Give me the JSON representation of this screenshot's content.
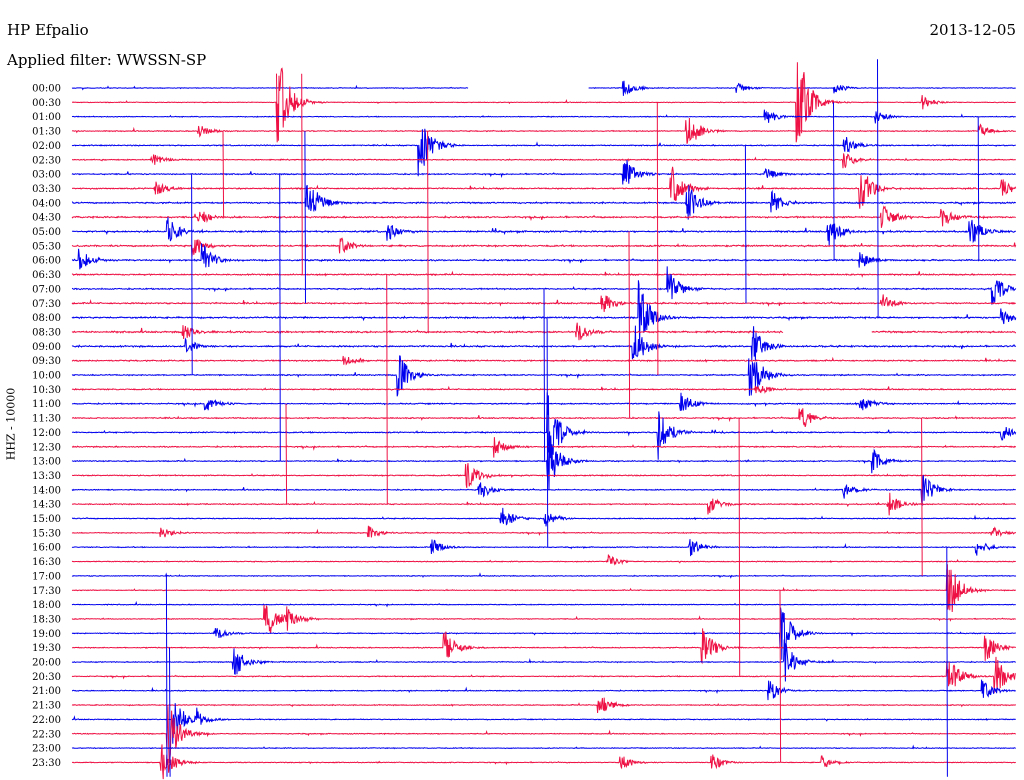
{
  "header": {
    "station": "HP Efpalio",
    "date": "2013-12-05",
    "filter": "Applied filter: WWSSN-SP"
  },
  "chart_data": {
    "type": "helicorder",
    "title": "HP Efpalio",
    "date": "2013-12-05",
    "filter": "Applied filter: WWSSN-SP",
    "ylabel": "HHZ - 10000",
    "row_minutes": 30,
    "colors": {
      "trace_a": "#0000ee",
      "trace_b": "#ee1144"
    },
    "row_labels": [
      "00:00",
      "00:30",
      "01:00",
      "01:30",
      "02:00",
      "02:30",
      "03:00",
      "03:30",
      "04:00",
      "04:30",
      "05:00",
      "05:30",
      "06:00",
      "06:30",
      "07:00",
      "07:30",
      "08:00",
      "08:30",
      "09:00",
      "09:30",
      "10:00",
      "10:30",
      "11:00",
      "11:30",
      "12:00",
      "12:30",
      "13:00",
      "13:30",
      "14:00",
      "14:30",
      "15:00",
      "15:30",
      "16:00",
      "16:30",
      "17:00",
      "17:30",
      "18:00",
      "18:30",
      "19:00",
      "19:30",
      "20:00",
      "20:30",
      "21:00",
      "21:30",
      "22:00",
      "22:30",
      "23:00",
      "23:30"
    ],
    "row_noise": [
      0.6,
      0.6,
      0.7,
      0.8,
      0.9,
      0.9,
      1.0,
      1.1,
      1.2,
      1.3,
      1.3,
      1.3,
      1.2,
      1.1,
      1.1,
      1.2,
      1.3,
      1.4,
      1.3,
      1.1,
      1.0,
      1.0,
      1.0,
      1.0,
      1.0,
      1.0,
      0.9,
      0.9,
      0.9,
      0.9,
      0.8,
      0.8,
      0.8,
      0.7,
      0.7,
      0.7,
      0.7,
      0.7,
      0.8,
      0.8,
      0.8,
      0.8,
      0.8,
      0.8,
      0.8,
      0.8,
      0.7,
      0.7
    ],
    "data_gaps": [
      {
        "row": 0,
        "from_min": 12.6,
        "to_min": 16.4
      },
      {
        "row": 17,
        "from_min": 22.6,
        "to_min": 25.4
      }
    ],
    "events": [
      {
        "row": 0,
        "min": 17.5,
        "amp": 10
      },
      {
        "row": 0,
        "min": 21.1,
        "amp": 6
      },
      {
        "row": 0,
        "min": 24.2,
        "amp": 6
      },
      {
        "row": 1,
        "min": 6.5,
        "amp": 60
      },
      {
        "row": 1,
        "min": 23.0,
        "amp": 70
      },
      {
        "row": 1,
        "min": 27.0,
        "amp": 8
      },
      {
        "row": 2,
        "min": 22.0,
        "amp": 10
      },
      {
        "row": 2,
        "min": 25.5,
        "amp": 8
      },
      {
        "row": 3,
        "min": 4.0,
        "amp": 8
      },
      {
        "row": 3,
        "min": 19.5,
        "amp": 25
      },
      {
        "row": 3,
        "min": 28.8,
        "amp": 8
      },
      {
        "row": 4,
        "min": 11.0,
        "amp": 40
      },
      {
        "row": 4,
        "min": 24.5,
        "amp": 12
      },
      {
        "row": 5,
        "min": 2.5,
        "amp": 8
      },
      {
        "row": 5,
        "min": 24.5,
        "amp": 10
      },
      {
        "row": 6,
        "min": 17.5,
        "amp": 22
      },
      {
        "row": 6,
        "min": 22.0,
        "amp": 8
      },
      {
        "row": 7,
        "min": 2.6,
        "amp": 10
      },
      {
        "row": 7,
        "min": 19.0,
        "amp": 30
      },
      {
        "row": 7,
        "min": 25.0,
        "amp": 30
      },
      {
        "row": 7,
        "min": 29.5,
        "amp": 12
      },
      {
        "row": 8,
        "min": 7.4,
        "amp": 40
      },
      {
        "row": 8,
        "min": 19.5,
        "amp": 25
      },
      {
        "row": 8,
        "min": 22.2,
        "amp": 15
      },
      {
        "row": 9,
        "min": 4.0,
        "amp": 10
      },
      {
        "row": 9,
        "min": 25.7,
        "amp": 18
      },
      {
        "row": 9,
        "min": 27.6,
        "amp": 15
      },
      {
        "row": 10,
        "min": 3.0,
        "amp": 18
      },
      {
        "row": 10,
        "min": 10.0,
        "amp": 12
      },
      {
        "row": 10,
        "min": 24.0,
        "amp": 18
      },
      {
        "row": 10,
        "min": 28.5,
        "amp": 20
      },
      {
        "row": 11,
        "min": 3.8,
        "amp": 14
      },
      {
        "row": 11,
        "min": 8.5,
        "amp": 10
      },
      {
        "row": 12,
        "min": 0.2,
        "amp": 14
      },
      {
        "row": 12,
        "min": 4.1,
        "amp": 20
      },
      {
        "row": 12,
        "min": 25.0,
        "amp": 10
      },
      {
        "row": 14,
        "min": 18.9,
        "amp": 25
      },
      {
        "row": 14,
        "min": 29.2,
        "amp": 22
      },
      {
        "row": 15,
        "min": 16.8,
        "amp": 15
      },
      {
        "row": 15,
        "min": 25.7,
        "amp": 12
      },
      {
        "row": 16,
        "min": 18.0,
        "amp": 40
      },
      {
        "row": 16,
        "min": 29.5,
        "amp": 10
      },
      {
        "row": 17,
        "min": 3.5,
        "amp": 10
      },
      {
        "row": 17,
        "min": 16.0,
        "amp": 12
      },
      {
        "row": 18,
        "min": 3.6,
        "amp": 8
      },
      {
        "row": 18,
        "min": 17.8,
        "amp": 30
      },
      {
        "row": 18,
        "min": 21.6,
        "amp": 25
      },
      {
        "row": 19,
        "min": 8.6,
        "amp": 8
      },
      {
        "row": 20,
        "min": 10.3,
        "amp": 30
      },
      {
        "row": 20,
        "min": 21.5,
        "amp": 40
      },
      {
        "row": 21,
        "min": 21.7,
        "amp": 8
      },
      {
        "row": 22,
        "min": 4.2,
        "amp": 10
      },
      {
        "row": 22,
        "min": 19.3,
        "amp": 15
      },
      {
        "row": 22,
        "min": 25.0,
        "amp": 10
      },
      {
        "row": 23,
        "min": 23.1,
        "amp": 18
      },
      {
        "row": 24,
        "min": 15.1,
        "amp": 45
      },
      {
        "row": 24,
        "min": 18.6,
        "amp": 30
      },
      {
        "row": 24,
        "min": 29.5,
        "amp": 10
      },
      {
        "row": 25,
        "min": 13.4,
        "amp": 12
      },
      {
        "row": 26,
        "min": 15.1,
        "amp": 35
      },
      {
        "row": 26,
        "min": 25.4,
        "amp": 15
      },
      {
        "row": 27,
        "min": 12.5,
        "amp": 20
      },
      {
        "row": 28,
        "min": 12.9,
        "amp": 12
      },
      {
        "row": 28,
        "min": 24.5,
        "amp": 10
      },
      {
        "row": 28,
        "min": 27.0,
        "amp": 20
      },
      {
        "row": 29,
        "min": 20.2,
        "amp": 12
      },
      {
        "row": 29,
        "min": 25.9,
        "amp": 15
      },
      {
        "row": 30,
        "min": 13.6,
        "amp": 15
      },
      {
        "row": 30,
        "min": 15.0,
        "amp": 10
      },
      {
        "row": 31,
        "min": 2.8,
        "amp": 8
      },
      {
        "row": 31,
        "min": 9.4,
        "amp": 8
      },
      {
        "row": 31,
        "min": 29.2,
        "amp": 8
      },
      {
        "row": 32,
        "min": 11.4,
        "amp": 10
      },
      {
        "row": 32,
        "min": 19.6,
        "amp": 12
      },
      {
        "row": 32,
        "min": 28.7,
        "amp": 10
      },
      {
        "row": 33,
        "min": 17.0,
        "amp": 8
      },
      {
        "row": 35,
        "min": 27.8,
        "amp": 40
      },
      {
        "row": 37,
        "min": 6.1,
        "amp": 30
      },
      {
        "row": 37,
        "min": 6.8,
        "amp": 15
      },
      {
        "row": 38,
        "min": 22.5,
        "amp": 35
      },
      {
        "row": 38,
        "min": 4.5,
        "amp": 8
      },
      {
        "row": 39,
        "min": 11.8,
        "amp": 20
      },
      {
        "row": 39,
        "min": 20.0,
        "amp": 25
      },
      {
        "row": 39,
        "min": 29.0,
        "amp": 18
      },
      {
        "row": 40,
        "min": 5.1,
        "amp": 20
      },
      {
        "row": 40,
        "min": 22.6,
        "amp": 25
      },
      {
        "row": 41,
        "min": 27.8,
        "amp": 25
      },
      {
        "row": 41,
        "min": 29.3,
        "amp": 25
      },
      {
        "row": 42,
        "min": 22.1,
        "amp": 15
      },
      {
        "row": 42,
        "min": 28.9,
        "amp": 12
      },
      {
        "row": 43,
        "min": 16.7,
        "amp": 15
      },
      {
        "row": 44,
        "min": 3.2,
        "amp": 25
      },
      {
        "row": 44,
        "min": 3.9,
        "amp": 12
      },
      {
        "row": 45,
        "min": 3.0,
        "amp": 40
      },
      {
        "row": 47,
        "min": 2.8,
        "amp": 25
      },
      {
        "row": 47,
        "min": 17.4,
        "amp": 10
      },
      {
        "row": 47,
        "min": 20.3,
        "amp": 10
      },
      {
        "row": 47,
        "min": 23.8,
        "amp": 8
      }
    ],
    "long_spikes": [
      {
        "row": 1,
        "min": 6.5,
        "rows_up": 2,
        "rows_down": 2
      },
      {
        "row": 5,
        "min": 4.8,
        "rows_up": 2,
        "rows_down": 4
      },
      {
        "row": 5,
        "min": 7.3,
        "rows_up": 6,
        "rows_down": 8
      },
      {
        "row": 7,
        "min": 18.6,
        "rows_up": 6,
        "rows_down": 13
      },
      {
        "row": 8,
        "min": 7.4,
        "rows_up": 5,
        "rows_down": 7
      },
      {
        "row": 8,
        "min": 24.2,
        "rows_up": 7,
        "rows_down": 4
      },
      {
        "row": 8,
        "min": 28.8,
        "rows_up": 6,
        "rows_down": 4
      },
      {
        "row": 8,
        "min": 25.6,
        "rows_up": 10,
        "rows_down": 8
      },
      {
        "row": 9,
        "min": 11.3,
        "rows_up": 6,
        "rows_down": 8
      },
      {
        "row": 10,
        "min": 21.4,
        "rows_up": 6,
        "rows_down": 5
      },
      {
        "row": 12,
        "min": 3.8,
        "rows_up": 6,
        "rows_down": 8
      },
      {
        "row": 12,
        "min": 6.6,
        "rows_up": 6,
        "rows_down": 14
      },
      {
        "row": 15,
        "min": 17.7,
        "rows_up": 5,
        "rows_down": 8
      },
      {
        "row": 18,
        "min": 15.0,
        "rows_up": 4,
        "rows_down": 8
      },
      {
        "row": 21,
        "min": 10.0,
        "rows_up": 8,
        "rows_down": 8
      },
      {
        "row": 24,
        "min": 15.1,
        "rows_up": 8,
        "rows_down": 8
      },
      {
        "row": 25,
        "min": 6.8,
        "rows_up": 3,
        "rows_down": 4
      },
      {
        "row": 27,
        "min": 21.2,
        "rows_up": 4,
        "rows_down": 14
      },
      {
        "row": 29,
        "min": 27.0,
        "rows_up": 6,
        "rows_down": 5
      },
      {
        "row": 38,
        "min": 3.0,
        "rows_up": 4,
        "rows_down": 10
      },
      {
        "row": 39,
        "min": 22.5,
        "rows_up": 4,
        "rows_down": 8
      },
      {
        "row": 42,
        "min": 27.8,
        "rows_up": 10,
        "rows_down": 6
      },
      {
        "row": 44,
        "min": 3.1,
        "rows_up": 5,
        "rows_down": 4
      }
    ]
  }
}
